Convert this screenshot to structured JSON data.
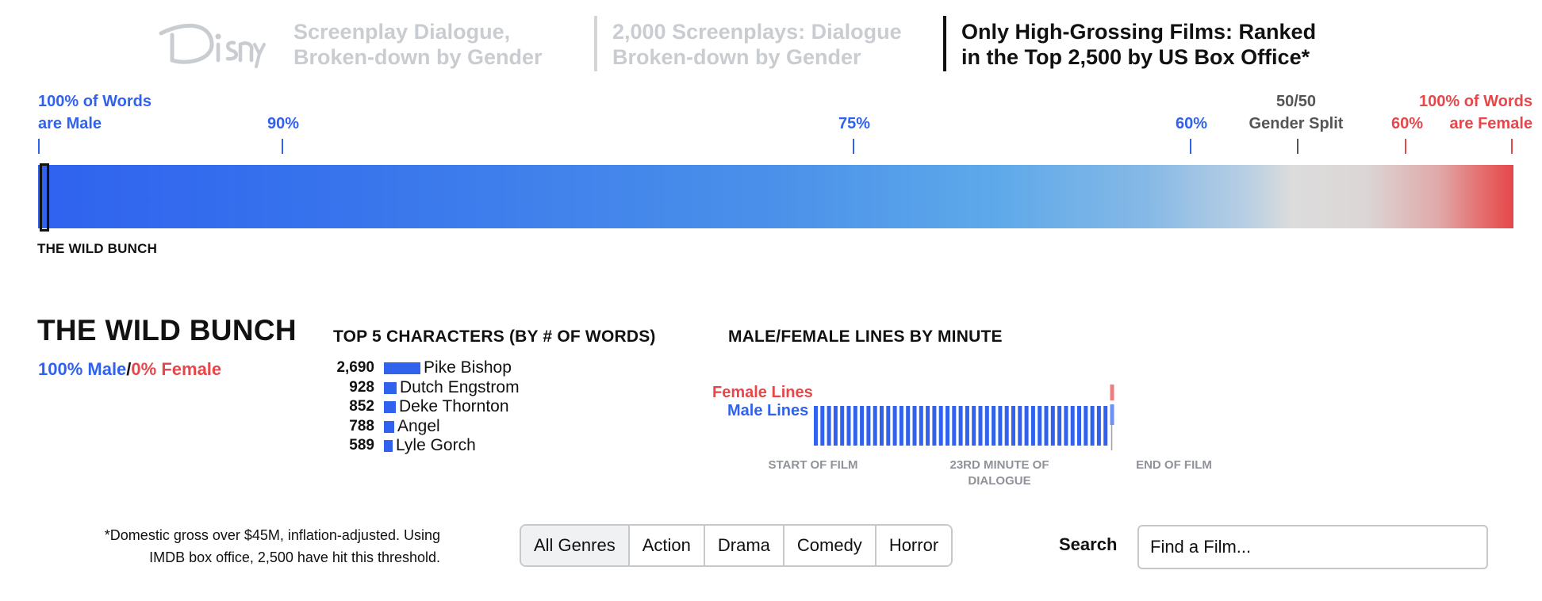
{
  "header": {
    "logo": "Disney",
    "tabs": [
      {
        "line1": "Screenplay Dialogue,",
        "line2": "Broken-down by Gender"
      },
      {
        "line1": "2,000 Screenplays: Dialogue",
        "line2": "Broken-down by Gender"
      },
      {
        "line1": "Only High-Grossing Films: Ranked",
        "line2": "in the Top 2,500 by US Box Office*"
      }
    ]
  },
  "scale": {
    "left_label": {
      "line1": "100% of Words",
      "line2": "are Male"
    },
    "m90": "90%",
    "m75": "75%",
    "m60": "60%",
    "split": {
      "line1": "50/50",
      "line2": "Gender Split"
    },
    "f60": "60%",
    "right_label": {
      "line1": "100% of Words",
      "line2": "are Female"
    }
  },
  "film": {
    "marker_label": "THE WILD BUNCH",
    "title": "THE WILD BUNCH",
    "male_pct": "100% Male",
    "female_pct": "0% Female",
    "male_share": 1.0
  },
  "characters": {
    "title": "TOP 5 CHARACTERS (BY # OF WORDS)"
  },
  "minutes": {
    "title": "MALE/FEMALE LINES BY MINUTE",
    "female_label": "Female Lines",
    "male_label": "Male Lines",
    "start_label": "START OF FILM",
    "mid_label": "23RD MINUTE OF DIALOGUE",
    "end_label": "END OF FILM"
  },
  "colors": {
    "male": "#3162ee",
    "female": "#e5474a",
    "neutral": "#dcdcdc"
  },
  "chart_data": {
    "type": "bar",
    "title": "TOP 5 CHARACTERS (BY # OF WORDS)",
    "categories": [
      "Pike Bishop",
      "Dutch Engstrom",
      "Deke Thornton",
      "Angel",
      "Lyle Gorch"
    ],
    "values": [
      2690,
      928,
      852,
      788,
      589
    ],
    "value_labels": [
      "2,690",
      "928",
      "852",
      "788",
      "589"
    ]
  },
  "footer": {
    "footnote_line1": "*Domestic gross over $45M, inflation-adjusted. Using",
    "footnote_line2": "IMDB box office, 2,500 have hit this threshold.",
    "genres": [
      "All Genres",
      "Action",
      "Drama",
      "Comedy",
      "Horror"
    ],
    "active_genre": "All Genres",
    "search_label": "Search",
    "search_placeholder": "Find a Film..."
  }
}
